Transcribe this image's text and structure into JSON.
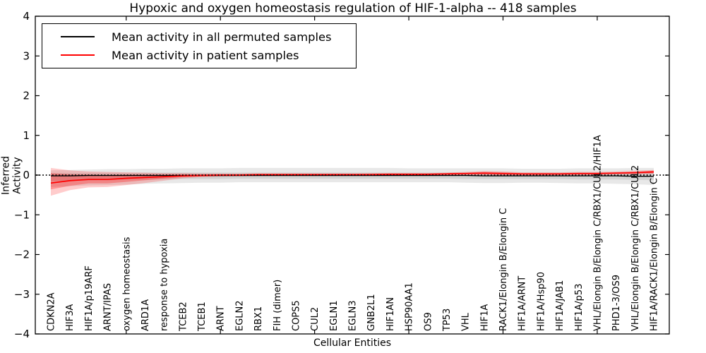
{
  "chart_data": {
    "type": "line",
    "title": "Hypoxic and oxygen homeostasis regulation of HIF-1-alpha -- 418 samples",
    "xlabel": "Cellular Entities",
    "ylabel": "Inferred Activity",
    "ylim": [
      -4,
      4
    ],
    "grid": false,
    "legend_position": "upper left",
    "y_ticks": [
      {
        "value": 4,
        "label": "4"
      },
      {
        "value": 3,
        "label": "3"
      },
      {
        "value": 2,
        "label": "2"
      },
      {
        "value": 1,
        "label": "1"
      },
      {
        "value": 0,
        "label": "0"
      },
      {
        "value": -1,
        "label": "−1"
      },
      {
        "value": -2,
        "label": "−2"
      },
      {
        "value": -3,
        "label": "−3"
      },
      {
        "value": -4,
        "label": "−4"
      }
    ],
    "x_major_tick_indices": [
      4,
      9,
      14,
      19,
      24,
      29
    ],
    "categories": [
      "CDKN2A",
      "HIF3A",
      "HIF1A/p19ARF",
      "ARNT/IPAS",
      "oxygen homeostasis",
      "ARD1A",
      "response to hypoxia",
      "TCEB2",
      "TCEB1",
      "ARNT",
      "EGLN2",
      "RBX1",
      "FIH (dimer)",
      "COPS5",
      "CUL2",
      "EGLN1",
      "EGLN3",
      "GNB2L1",
      "HIF1AN",
      "HSP90AA1",
      "OS9",
      "TP53",
      "VHL",
      "HIF1A",
      "RACK1/Elongin B/Elongin C",
      "HIF1A/ARNT",
      "HIF1A/Hsp90",
      "HIF1A/JAB1",
      "HIF1A/p53",
      "VHL/Elongin B/Elongin C/RBX1/CUL2/HIF1A",
      "PHD1-3/OS9",
      "VHL/Elongin B/Elongin C/RBX1/CUL2",
      "HIF1A/RACK1/Elongin B/Elongin C"
    ],
    "series": [
      {
        "name": "Mean activity in all permuted samples",
        "color": "#000000",
        "line_style": "solid",
        "values": [
          -0.02,
          -0.02,
          -0.01,
          -0.01,
          -0.01,
          -0.01,
          -0.01,
          -0.01,
          -0.01,
          -0.01,
          -0.01,
          -0.01,
          -0.01,
          -0.01,
          -0.01,
          -0.01,
          -0.01,
          -0.01,
          -0.01,
          -0.01,
          -0.01,
          -0.01,
          -0.01,
          -0.02,
          -0.02,
          -0.02,
          -0.02,
          -0.02,
          -0.02,
          -0.02,
          -0.02,
          -0.03,
          -0.03
        ]
      },
      {
        "name": "Mean activity in patient samples",
        "color": "#ff0000",
        "line_style": "solid",
        "values": [
          -0.2,
          -0.14,
          -0.11,
          -0.11,
          -0.08,
          -0.06,
          -0.04,
          -0.02,
          -0.01,
          0.0,
          0.0,
          0.01,
          0.01,
          0.01,
          0.01,
          0.01,
          0.01,
          0.01,
          0.02,
          0.02,
          0.02,
          0.03,
          0.04,
          0.05,
          0.04,
          0.03,
          0.03,
          0.03,
          0.04,
          0.04,
          0.05,
          0.06,
          0.08
        ]
      }
    ],
    "bands": [
      {
        "name": "permuted-band-outer",
        "color": "#000000",
        "opacity": 0.09,
        "low": [
          -0.3,
          -0.28,
          -0.26,
          -0.25,
          -0.24,
          -0.22,
          -0.21,
          -0.2,
          -0.19,
          -0.19,
          -0.18,
          -0.18,
          -0.18,
          -0.18,
          -0.18,
          -0.18,
          -0.18,
          -0.18,
          -0.18,
          -0.18,
          -0.18,
          -0.18,
          -0.19,
          -0.2,
          -0.2,
          -0.19,
          -0.19,
          -0.2,
          -0.21,
          -0.21,
          -0.22,
          -0.23,
          -0.25
        ],
        "high": [
          0.12,
          0.13,
          0.14,
          0.15,
          0.15,
          0.16,
          0.16,
          0.17,
          0.17,
          0.17,
          0.18,
          0.18,
          0.18,
          0.18,
          0.18,
          0.18,
          0.18,
          0.18,
          0.18,
          0.17,
          0.17,
          0.17,
          0.17,
          0.17,
          0.17,
          0.16,
          0.16,
          0.16,
          0.17,
          0.17,
          0.17,
          0.18,
          0.18
        ]
      },
      {
        "name": "permuted-band-inner",
        "color": "#000000",
        "opacity": 0.09,
        "low": [
          -0.16,
          -0.14,
          -0.13,
          -0.12,
          -0.11,
          -0.11,
          -0.1,
          -0.1,
          -0.1,
          -0.1,
          -0.09,
          -0.09,
          -0.09,
          -0.09,
          -0.09,
          -0.09,
          -0.09,
          -0.09,
          -0.09,
          -0.09,
          -0.09,
          -0.09,
          -0.1,
          -0.1,
          -0.1,
          -0.1,
          -0.1,
          -0.1,
          -0.11,
          -0.11,
          -0.11,
          -0.12,
          -0.13
        ],
        "high": [
          0.05,
          0.05,
          0.05,
          0.05,
          0.05,
          0.06,
          0.06,
          0.06,
          0.06,
          0.06,
          0.06,
          0.06,
          0.06,
          0.06,
          0.06,
          0.06,
          0.06,
          0.06,
          0.06,
          0.06,
          0.06,
          0.06,
          0.06,
          0.06,
          0.06,
          0.05,
          0.05,
          0.05,
          0.06,
          0.06,
          0.06,
          0.06,
          0.07
        ]
      },
      {
        "name": "patient-band-outer",
        "color": "#ff0000",
        "opacity": 0.2,
        "low": [
          -0.52,
          -0.38,
          -0.31,
          -0.3,
          -0.25,
          -0.2,
          -0.14,
          -0.08,
          -0.05,
          -0.04,
          -0.03,
          -0.02,
          -0.02,
          -0.02,
          -0.02,
          -0.02,
          -0.02,
          -0.02,
          -0.01,
          -0.01,
          -0.01,
          0.0,
          0.0,
          0.0,
          -0.01,
          -0.01,
          -0.01,
          0.0,
          0.0,
          0.0,
          0.01,
          0.02,
          0.03
        ],
        "high": [
          0.18,
          0.12,
          0.09,
          0.08,
          0.07,
          0.06,
          0.05,
          0.05,
          0.04,
          0.04,
          0.04,
          0.04,
          0.04,
          0.04,
          0.04,
          0.04,
          0.04,
          0.05,
          0.05,
          0.05,
          0.05,
          0.06,
          0.08,
          0.1,
          0.09,
          0.07,
          0.07,
          0.07,
          0.08,
          0.08,
          0.09,
          0.11,
          0.13
        ]
      },
      {
        "name": "patient-band-inner",
        "color": "#ff0000",
        "opacity": 0.28,
        "low": [
          -0.36,
          -0.27,
          -0.21,
          -0.21,
          -0.17,
          -0.13,
          -0.09,
          -0.05,
          -0.03,
          -0.02,
          -0.02,
          -0.01,
          -0.01,
          -0.01,
          -0.01,
          -0.01,
          -0.01,
          -0.01,
          0.0,
          0.0,
          0.0,
          0.01,
          0.02,
          0.02,
          0.01,
          0.01,
          0.01,
          0.01,
          0.02,
          0.02,
          0.03,
          0.04,
          0.05
        ],
        "high": [
          0.05,
          0.02,
          0.01,
          0.0,
          0.01,
          0.01,
          0.01,
          0.02,
          0.02,
          0.02,
          0.02,
          0.03,
          0.03,
          0.03,
          0.03,
          0.03,
          0.03,
          0.03,
          0.04,
          0.04,
          0.04,
          0.05,
          0.06,
          0.08,
          0.07,
          0.05,
          0.05,
          0.05,
          0.06,
          0.06,
          0.07,
          0.08,
          0.11
        ]
      }
    ],
    "zero_line": {
      "value": 0,
      "style": "dotted",
      "color": "#000000"
    }
  }
}
